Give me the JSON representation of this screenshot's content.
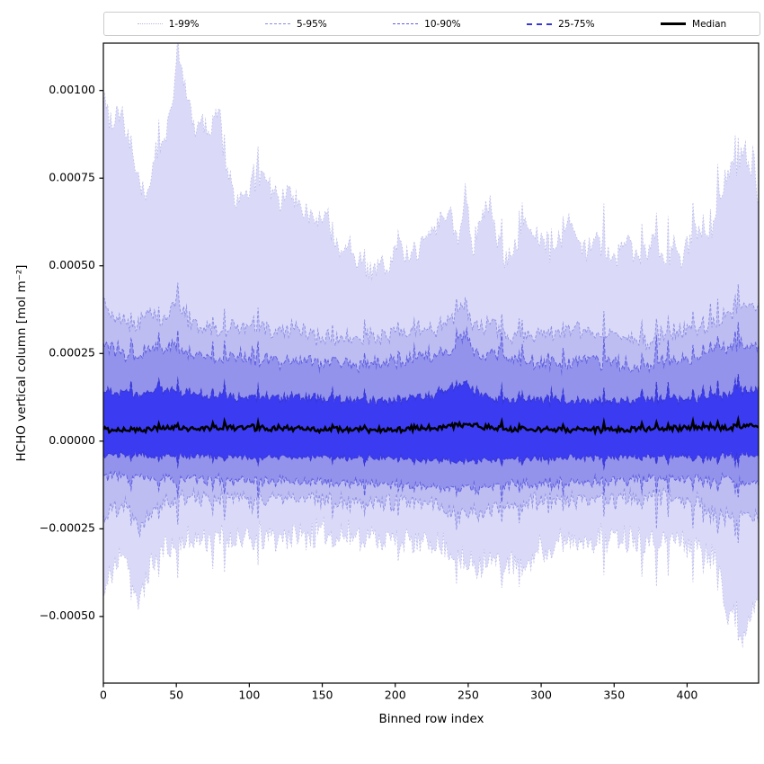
{
  "chart_data": {
    "type": "area",
    "subtype": "percentile-fan",
    "title": "",
    "xlabel": "Binned row index",
    "ylabel": "HCHO vertical column [mol m⁻²]",
    "xlim": [
      0,
      449
    ],
    "ylim": [
      -0.00069,
      0.001135
    ],
    "x_ticks": [
      0,
      50,
      100,
      150,
      200,
      250,
      300,
      350,
      400
    ],
    "y_ticks": [
      {
        "v": -0.0005,
        "label": "−0.00050"
      },
      {
        "v": -0.00025,
        "label": "−0.00025"
      },
      {
        "v": 0,
        "label": "0.00000"
      },
      {
        "v": 0.00025,
        "label": "0.00025"
      },
      {
        "v": 0.0005,
        "label": "0.00050"
      },
      {
        "v": 0.00075,
        "label": "0.00075"
      },
      {
        "v": 0.001,
        "label": "0.00100"
      }
    ],
    "grid": false,
    "legend_position": "top",
    "n_points": 450,
    "value_scale": 1e-05,
    "percentile_order": [
      "p1",
      "p5",
      "p10",
      "p25",
      "median",
      "p75",
      "p90",
      "p95",
      "p99"
    ],
    "noise": {
      "common_seed": 1234,
      "spike_prob": 0.06,
      "spike_mult": 2.5,
      "base_mult": 0.6
    },
    "series": {
      "p99": {
        "seed": 99,
        "jitter": 3,
        "common": 5,
        "keypoints": [
          [
            0,
            95
          ],
          [
            6,
            90
          ],
          [
            12,
            94
          ],
          [
            18,
            82
          ],
          [
            25,
            72
          ],
          [
            30,
            68
          ],
          [
            36,
            80
          ],
          [
            42,
            84
          ],
          [
            47,
            95
          ],
          [
            52,
            108
          ],
          [
            57,
            97
          ],
          [
            63,
            88
          ],
          [
            68,
            91
          ],
          [
            74,
            85
          ],
          [
            79,
            94
          ],
          [
            84,
            76
          ],
          [
            90,
            69
          ],
          [
            96,
            66
          ],
          [
            102,
            71
          ],
          [
            108,
            76
          ],
          [
            114,
            72
          ],
          [
            120,
            66
          ],
          [
            127,
            70
          ],
          [
            134,
            64
          ],
          [
            141,
            63
          ],
          [
            148,
            62
          ],
          [
            155,
            61
          ],
          [
            162,
            52
          ],
          [
            169,
            55
          ],
          [
            176,
            50
          ],
          [
            182,
            46
          ],
          [
            189,
            50
          ],
          [
            196,
            47
          ],
          [
            203,
            55
          ],
          [
            210,
            49
          ],
          [
            217,
            53
          ],
          [
            224,
            60
          ],
          [
            231,
            62
          ],
          [
            238,
            64
          ],
          [
            243,
            54
          ],
          [
            248,
            72
          ],
          [
            253,
            54
          ],
          [
            259,
            61
          ],
          [
            265,
            67
          ],
          [
            271,
            54
          ],
          [
            277,
            51
          ],
          [
            283,
            55
          ],
          [
            289,
            61
          ],
          [
            295,
            56
          ],
          [
            301,
            58
          ],
          [
            307,
            52
          ],
          [
            313,
            56
          ],
          [
            319,
            61
          ],
          [
            325,
            55
          ],
          [
            331,
            52
          ],
          [
            337,
            58
          ],
          [
            343,
            54
          ],
          [
            349,
            50
          ],
          [
            355,
            54
          ],
          [
            361,
            56
          ],
          [
            367,
            50
          ],
          [
            373,
            53
          ],
          [
            379,
            56
          ],
          [
            385,
            50
          ],
          [
            391,
            53
          ],
          [
            397,
            50
          ],
          [
            403,
            57
          ],
          [
            409,
            61
          ],
          [
            415,
            56
          ],
          [
            421,
            66
          ],
          [
            427,
            74
          ],
          [
            431,
            79
          ],
          [
            435,
            76
          ],
          [
            439,
            82
          ],
          [
            443,
            75
          ],
          [
            446,
            80
          ],
          [
            449,
            64
          ]
        ]
      },
      "p95": {
        "seed": 88,
        "jitter": 2.2,
        "common": 3.5,
        "keypoints": [
          [
            0,
            38
          ],
          [
            10,
            34
          ],
          [
            20,
            32
          ],
          [
            30,
            35
          ],
          [
            40,
            33
          ],
          [
            52,
            38
          ],
          [
            60,
            33
          ],
          [
            70,
            32
          ],
          [
            80,
            30
          ],
          [
            90,
            31
          ],
          [
            100,
            32
          ],
          [
            115,
            30
          ],
          [
            130,
            31
          ],
          [
            145,
            29
          ],
          [
            160,
            28
          ],
          [
            175,
            29
          ],
          [
            190,
            28
          ],
          [
            205,
            30
          ],
          [
            220,
            31
          ],
          [
            235,
            32
          ],
          [
            248,
            39
          ],
          [
            255,
            31
          ],
          [
            265,
            33
          ],
          [
            280,
            29
          ],
          [
            295,
            30
          ],
          [
            310,
            29
          ],
          [
            325,
            31
          ],
          [
            340,
            30
          ],
          [
            355,
            29
          ],
          [
            370,
            28
          ],
          [
            385,
            29
          ],
          [
            400,
            30
          ],
          [
            415,
            31
          ],
          [
            428,
            35
          ],
          [
            437,
            37
          ],
          [
            449,
            36
          ]
        ]
      },
      "p90": {
        "seed": 77,
        "jitter": 1.8,
        "common": 3,
        "keypoints": [
          [
            0,
            27
          ],
          [
            15,
            24
          ],
          [
            30,
            25
          ],
          [
            45,
            26
          ],
          [
            60,
            24
          ],
          [
            80,
            23
          ],
          [
            100,
            23
          ],
          [
            120,
            22
          ],
          [
            140,
            22
          ],
          [
            160,
            21
          ],
          [
            180,
            21
          ],
          [
            200,
            22
          ],
          [
            220,
            23
          ],
          [
            235,
            24
          ],
          [
            248,
            30
          ],
          [
            258,
            23
          ],
          [
            270,
            24
          ],
          [
            290,
            22
          ],
          [
            310,
            21
          ],
          [
            330,
            22
          ],
          [
            350,
            21
          ],
          [
            370,
            21
          ],
          [
            390,
            22
          ],
          [
            410,
            23
          ],
          [
            425,
            25
          ],
          [
            437,
            27
          ],
          [
            449,
            26
          ]
        ]
      },
      "p75": {
        "seed": 66,
        "jitter": 1.2,
        "common": 2,
        "keypoints": [
          [
            0,
            14
          ],
          [
            20,
            13
          ],
          [
            40,
            14
          ],
          [
            60,
            13
          ],
          [
            80,
            12.5
          ],
          [
            100,
            12
          ],
          [
            130,
            12
          ],
          [
            160,
            11.5
          ],
          [
            190,
            11
          ],
          [
            220,
            12
          ],
          [
            248,
            16
          ],
          [
            260,
            12
          ],
          [
            290,
            11.5
          ],
          [
            320,
            11
          ],
          [
            350,
            11
          ],
          [
            380,
            11.5
          ],
          [
            410,
            12
          ],
          [
            430,
            13
          ],
          [
            449,
            14
          ]
        ]
      },
      "median": {
        "seed": 55,
        "jitter": 0.7,
        "common": 0.8,
        "keypoints": [
          [
            0,
            3
          ],
          [
            30,
            3.2
          ],
          [
            60,
            3.5
          ],
          [
            100,
            3.6
          ],
          [
            140,
            3.2
          ],
          [
            180,
            3
          ],
          [
            220,
            3.3
          ],
          [
            248,
            4.5
          ],
          [
            270,
            3.4
          ],
          [
            310,
            3
          ],
          [
            350,
            3.2
          ],
          [
            390,
            3.4
          ],
          [
            420,
            3.6
          ],
          [
            449,
            4
          ]
        ]
      },
      "p25": {
        "seed": 44,
        "jitter": 0.8,
        "common": -1.2,
        "keypoints": [
          [
            0,
            -3.5
          ],
          [
            40,
            -3.8
          ],
          [
            80,
            -4
          ],
          [
            120,
            -4.2
          ],
          [
            160,
            -4.3
          ],
          [
            200,
            -4.5
          ],
          [
            248,
            -5.5
          ],
          [
            280,
            -4.8
          ],
          [
            320,
            -4.4
          ],
          [
            360,
            -4.2
          ],
          [
            400,
            -4
          ],
          [
            430,
            -3.8
          ],
          [
            449,
            -3.6
          ]
        ]
      },
      "p10": {
        "seed": 33,
        "jitter": 1.3,
        "common": -2.2,
        "keypoints": [
          [
            0,
            -9
          ],
          [
            30,
            -10
          ],
          [
            70,
            -10.5
          ],
          [
            110,
            -10.5
          ],
          [
            150,
            -11
          ],
          [
            200,
            -11.5
          ],
          [
            248,
            -13
          ],
          [
            280,
            -12
          ],
          [
            320,
            -11
          ],
          [
            360,
            -10.5
          ],
          [
            400,
            -10
          ],
          [
            430,
            -10.5
          ],
          [
            449,
            -11
          ]
        ]
      },
      "p5": {
        "seed": 22,
        "jitter": 2.2,
        "common": -3.5,
        "keypoints": [
          [
            0,
            -20
          ],
          [
            15,
            -16
          ],
          [
            25,
            -24
          ],
          [
            35,
            -16
          ],
          [
            60,
            -15
          ],
          [
            100,
            -15
          ],
          [
            140,
            -15.5
          ],
          [
            180,
            -16
          ],
          [
            220,
            -16.5
          ],
          [
            248,
            -20
          ],
          [
            270,
            -18
          ],
          [
            300,
            -16
          ],
          [
            340,
            -15.5
          ],
          [
            380,
            -15
          ],
          [
            405,
            -15.5
          ],
          [
            422,
            -20
          ],
          [
            432,
            -22
          ],
          [
            441,
            -18
          ],
          [
            449,
            -20
          ]
        ]
      },
      "p1": {
        "seed": 11,
        "jitter": 3.5,
        "common": -5,
        "keypoints": [
          [
            0,
            -42
          ],
          [
            8,
            -34
          ],
          [
            16,
            -30
          ],
          [
            24,
            -47
          ],
          [
            32,
            -33
          ],
          [
            45,
            -28
          ],
          [
            60,
            -27
          ],
          [
            80,
            -26.5
          ],
          [
            100,
            -26
          ],
          [
            130,
            -25.5
          ],
          [
            160,
            -25
          ],
          [
            190,
            -26
          ],
          [
            215,
            -27
          ],
          [
            235,
            -29
          ],
          [
            250,
            -35
          ],
          [
            262,
            -32
          ],
          [
            275,
            -34
          ],
          [
            288,
            -35
          ],
          [
            300,
            -29
          ],
          [
            320,
            -27
          ],
          [
            345,
            -26
          ],
          [
            370,
            -26.5
          ],
          [
            395,
            -27
          ],
          [
            412,
            -29
          ],
          [
            422,
            -32
          ],
          [
            428,
            -50
          ],
          [
            433,
            -44
          ],
          [
            438,
            -55
          ],
          [
            444,
            -46
          ],
          [
            449,
            -40
          ]
        ]
      }
    },
    "bands": [
      {
        "label": "1-99%",
        "upper": "p99",
        "lower": "p1",
        "fill": "#dadaf8",
        "edge": "#b8b8e8",
        "dash": [
          1.5,
          2.3
        ],
        "edge_width": 0.8
      },
      {
        "label": "5-95%",
        "upper": "p95",
        "lower": "p5",
        "fill": "#bdbdf2",
        "edge": "#8d8de4",
        "dash": [
          3,
          2
        ],
        "edge_width": 0.9
      },
      {
        "label": "10-90%",
        "upper": "p90",
        "lower": "p10",
        "fill": "#9393ec",
        "edge": "#5f5fe0",
        "dash": [
          4.5,
          2.2
        ],
        "edge_width": 1
      },
      {
        "label": "25-75%",
        "upper": "p75",
        "lower": "p25",
        "fill": "#3b3bf2",
        "edge": "#3838cf",
        "dash": [
          6,
          2.4
        ],
        "edge_width": 1.1
      }
    ],
    "median_style": {
      "color": "#000000",
      "width": 2.4
    },
    "legend": [
      {
        "label": "1-99%",
        "line": "dotted",
        "color": "#b8b8e8",
        "weight": 1
      },
      {
        "label": "5-95%",
        "line": "dashed",
        "color": "#8d8de4",
        "weight": 1
      },
      {
        "label": "10-90%",
        "line": "dashed",
        "color": "#5f5fe0",
        "weight": 1
      },
      {
        "label": "25-75%",
        "line": "dashed",
        "color": "#3838cf",
        "weight": 2
      },
      {
        "label": "Median",
        "line": "solid",
        "color": "#000000",
        "weight": 3
      }
    ],
    "colors": {
      "axis": "#000000",
      "background": "#ffffff",
      "legend_border": "#cccccc"
    }
  }
}
